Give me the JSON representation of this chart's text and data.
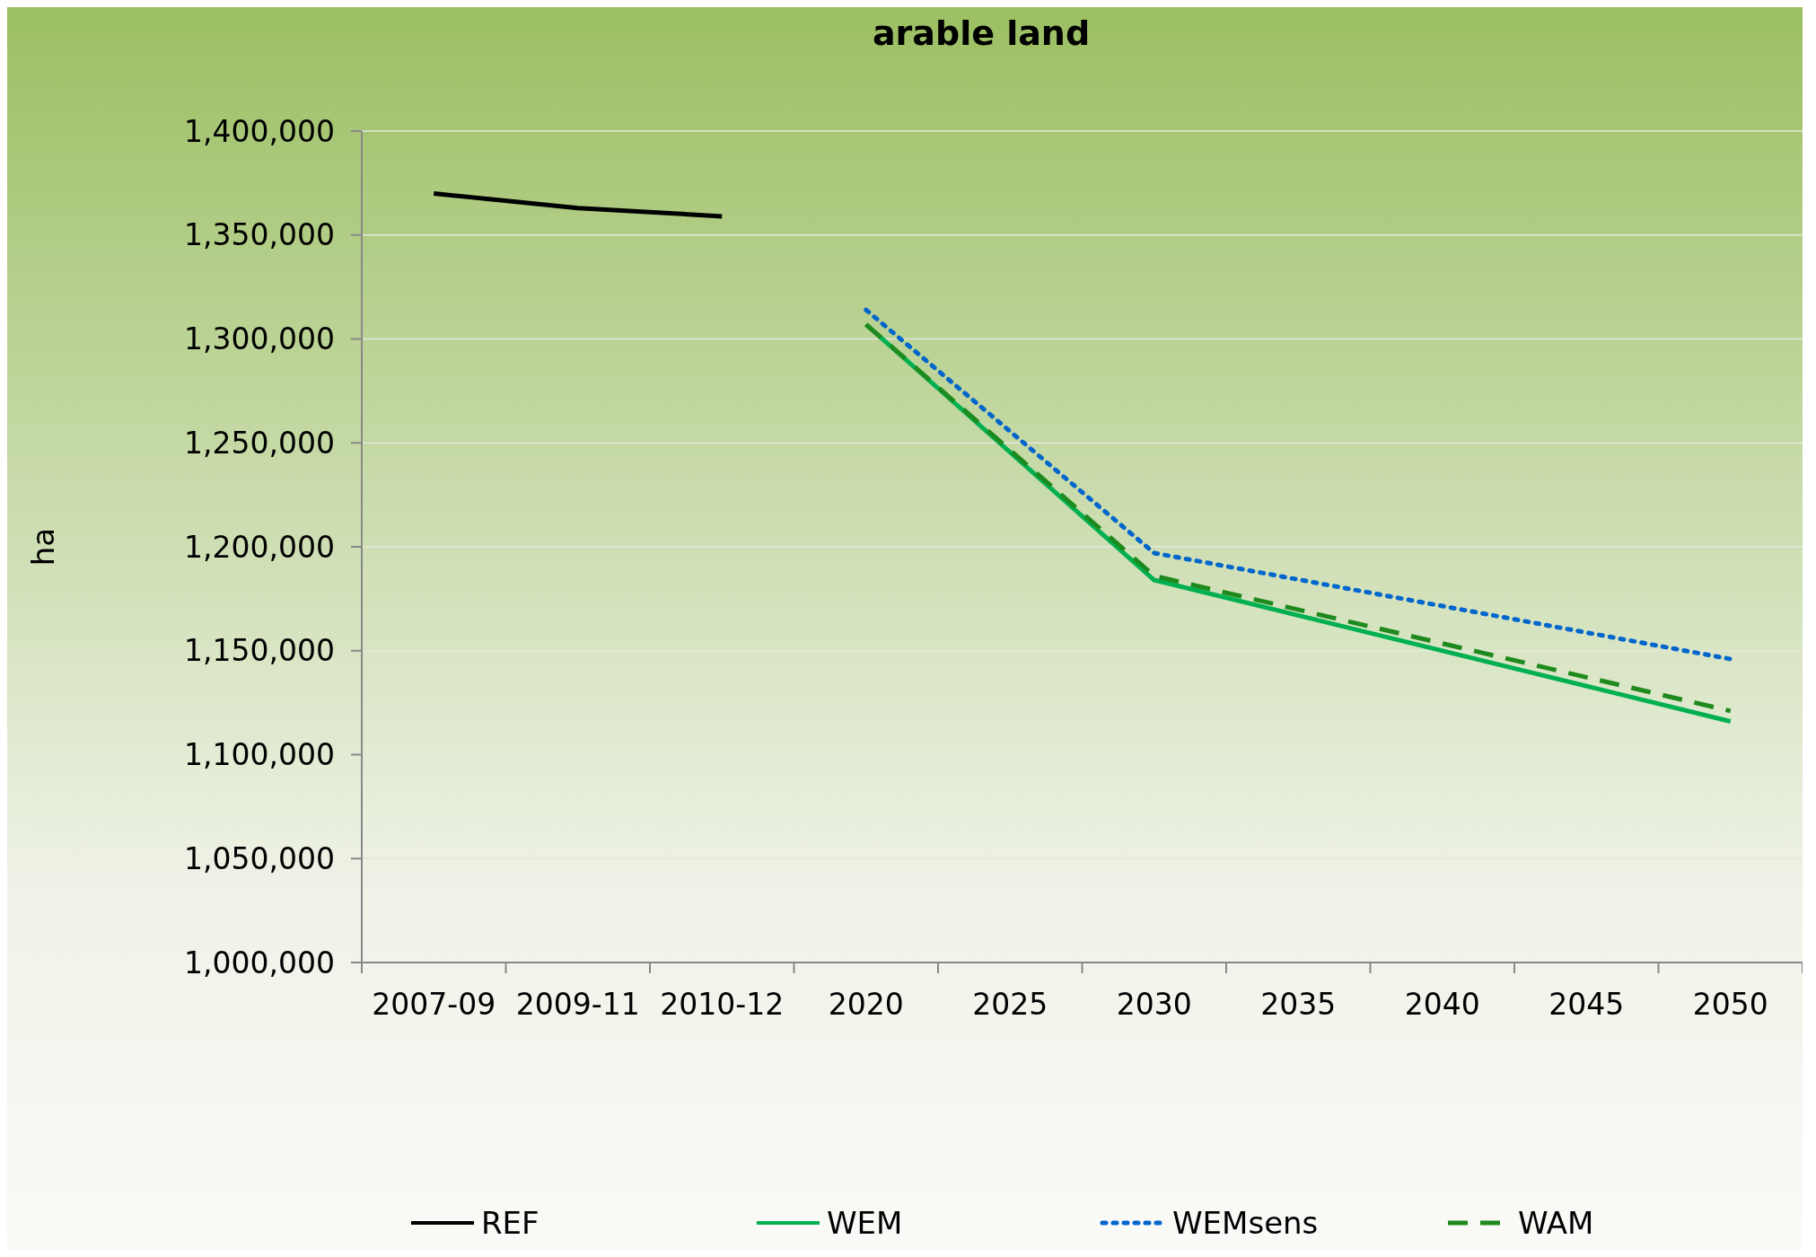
{
  "chart_data": {
    "type": "line",
    "title": "arable land",
    "ylabel": "ha",
    "categories": [
      "2007-09",
      "2009-11",
      "2010-12",
      "2020",
      "2025",
      "2030",
      "2035",
      "2040",
      "2045",
      "2050"
    ],
    "series": [
      {
        "name": "REF",
        "color": "#000000",
        "line_style": "solid",
        "values": [
          1370000,
          1363000,
          1359000,
          null,
          null,
          null,
          null,
          null,
          null,
          null
        ]
      },
      {
        "name": "WEM",
        "color": "#00b050",
        "line_style": "solid",
        "values": [
          null,
          null,
          null,
          1307000,
          null,
          1184000,
          null,
          null,
          null,
          1116000
        ]
      },
      {
        "name": "WEMsens",
        "color": "#0066cc",
        "line_style": "dotted",
        "values": [
          null,
          null,
          null,
          1314000,
          null,
          1197000,
          null,
          null,
          null,
          1146000
        ]
      },
      {
        "name": "WAM",
        "color": "#1e8a1e",
        "line_style": "dashed",
        "values": [
          null,
          null,
          null,
          1307000,
          null,
          1186000,
          null,
          null,
          null,
          1121000
        ]
      }
    ],
    "ylim": [
      1000000,
      1400000
    ],
    "yticks": [
      {
        "value": 1000000,
        "label": "1,000,000"
      },
      {
        "value": 1050000,
        "label": "1,050,000"
      },
      {
        "value": 1100000,
        "label": "1,100,000"
      },
      {
        "value": 1150000,
        "label": "1,150,000"
      },
      {
        "value": 1200000,
        "label": "1,200,000"
      },
      {
        "value": 1250000,
        "label": "1,250,000"
      },
      {
        "value": 1300000,
        "label": "1,300,000"
      },
      {
        "value": 1350000,
        "label": "1,350,000"
      },
      {
        "value": 1400000,
        "label": "1,400,000"
      }
    ],
    "grid": "y",
    "legend": "bottom"
  }
}
